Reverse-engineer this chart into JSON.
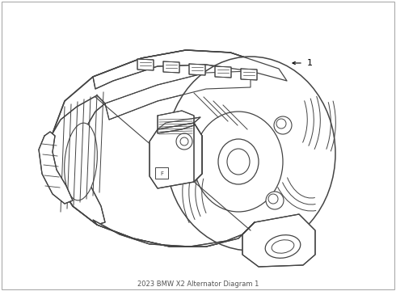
{
  "background_color": "#ffffff",
  "line_color": "#444444",
  "label_color": "#000000",
  "part_number": "1",
  "footer_text": "2023 BMW X2 Alternator Diagram 1",
  "fig_width": 4.9,
  "fig_height": 3.6,
  "dpi": 100
}
